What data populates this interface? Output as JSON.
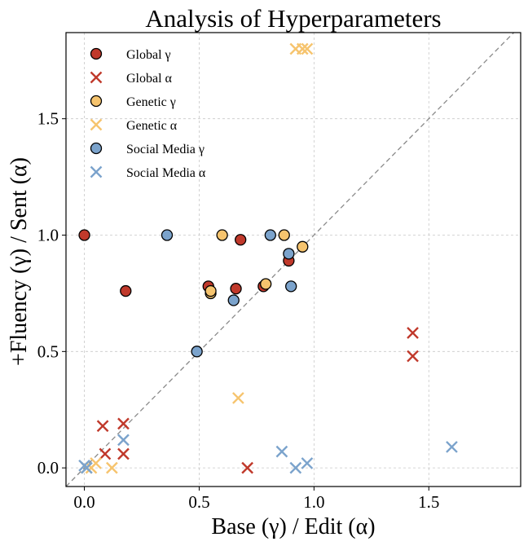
{
  "chart_data": {
    "type": "scatter",
    "title": "Analysis of Hyperparameters",
    "xlabel": "Base (γ) / Edit (α)",
    "ylabel": "+Fluency (γ) / Sent (α)",
    "xlim": [
      -0.08,
      1.9
    ],
    "ylim": [
      -0.08,
      1.87
    ],
    "xticks": [
      0.0,
      0.5,
      1.0,
      1.5
    ],
    "yticks": [
      0.0,
      0.5,
      1.0,
      1.5
    ],
    "xtick_labels": [
      "0.0",
      "0.5",
      "1.0",
      "1.5"
    ],
    "ytick_labels": [
      "0.0",
      "0.5",
      "1.0",
      "1.5"
    ],
    "grid": true,
    "diagonal_reference_line": true,
    "legend_position": "upper-left",
    "series": [
      {
        "name": "Global γ",
        "marker": "circle",
        "color": "#c0392b",
        "points": [
          [
            0.0,
            1.0
          ],
          [
            0.18,
            0.76
          ],
          [
            0.54,
            0.78
          ],
          [
            0.66,
            0.77
          ],
          [
            0.68,
            0.98
          ],
          [
            0.78,
            0.78
          ],
          [
            0.89,
            0.89
          ]
        ]
      },
      {
        "name": "Global α",
        "marker": "x",
        "color": "#c0392b",
        "points": [
          [
            0.08,
            0.18
          ],
          [
            0.09,
            0.06
          ],
          [
            0.17,
            0.19
          ],
          [
            0.17,
            0.06
          ],
          [
            0.71,
            0.0
          ],
          [
            1.43,
            0.58
          ],
          [
            1.43,
            0.48
          ]
        ]
      },
      {
        "name": "Genetic γ",
        "marker": "circle",
        "color": "#f6c46e",
        "points": [
          [
            0.55,
            0.75
          ],
          [
            0.55,
            0.76
          ],
          [
            0.6,
            1.0
          ],
          [
            0.79,
            0.79
          ],
          [
            0.87,
            1.0
          ],
          [
            0.95,
            0.95
          ]
        ]
      },
      {
        "name": "Genetic α",
        "marker": "x",
        "color": "#f6c46e",
        "points": [
          [
            0.01,
            0.0
          ],
          [
            0.03,
            0.0
          ],
          [
            0.05,
            0.02
          ],
          [
            0.12,
            0.0
          ],
          [
            0.67,
            0.3
          ],
          [
            0.92,
            1.8
          ],
          [
            0.95,
            1.8
          ],
          [
            0.97,
            1.8
          ]
        ]
      },
      {
        "name": "Social Media γ",
        "marker": "circle",
        "color": "#7ba3cc",
        "points": [
          [
            0.36,
            1.0
          ],
          [
            0.49,
            0.5
          ],
          [
            0.65,
            0.72
          ],
          [
            0.81,
            1.0
          ],
          [
            0.89,
            0.92
          ],
          [
            0.9,
            0.78
          ]
        ]
      },
      {
        "name": "Social Media α",
        "marker": "x",
        "color": "#7ba3cc",
        "points": [
          [
            0.0,
            0.01
          ],
          [
            0.01,
            0.0
          ],
          [
            0.17,
            0.12
          ],
          [
            0.86,
            0.07
          ],
          [
            0.92,
            0.0
          ],
          [
            0.97,
            0.02
          ],
          [
            1.6,
            0.09
          ]
        ]
      }
    ]
  }
}
